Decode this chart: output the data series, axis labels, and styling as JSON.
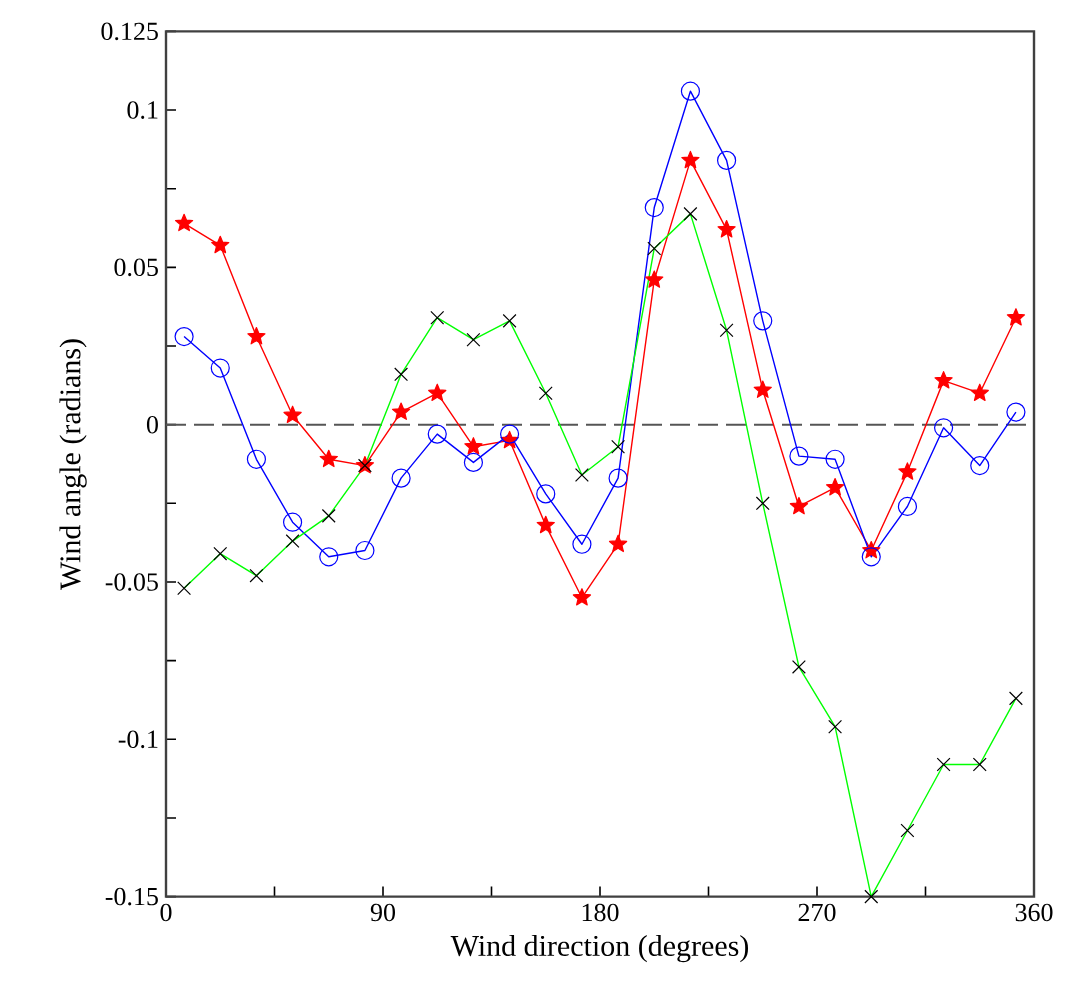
{
  "chart_data": {
    "type": "line",
    "xlabel": "Wind direction (degrees)",
    "ylabel": "Wind angle (radians)",
    "x": [
      7.5,
      22.5,
      37.5,
      52.5,
      67.5,
      82.5,
      97.5,
      112.5,
      127.5,
      142.5,
      157.5,
      172.5,
      187.5,
      202.5,
      217.5,
      232.5,
      247.5,
      262.5,
      277.5,
      292.5,
      307.5,
      322.5,
      337.5,
      352.5
    ],
    "series": [
      {
        "color": "#ff0000",
        "marker": "star",
        "values": [
          0.064,
          0.057,
          0.028,
          0.003,
          -0.011,
          -0.013,
          0.004,
          0.01,
          -0.007,
          -0.005,
          -0.032,
          -0.055,
          -0.038,
          0.046,
          0.084,
          0.062,
          0.011,
          -0.026,
          -0.02,
          -0.04,
          -0.015,
          0.014,
          0.01,
          0.034
        ]
      },
      {
        "color": "#0000ff",
        "marker": "circle",
        "values": [
          0.028,
          0.018,
          -0.011,
          -0.031,
          -0.042,
          -0.04,
          -0.017,
          -0.003,
          -0.012,
          -0.003,
          -0.022,
          -0.038,
          -0.017,
          0.069,
          0.106,
          0.084,
          0.033,
          -0.01,
          -0.011,
          -0.042,
          -0.026,
          -0.001,
          -0.013,
          0.004
        ]
      },
      {
        "color": "#00ff00",
        "marker": "cross",
        "values": [
          -0.052,
          -0.041,
          -0.048,
          -0.037,
          -0.029,
          -0.013,
          0.016,
          0.034,
          0.027,
          0.033,
          0.01,
          -0.016,
          -0.007,
          0.056,
          0.067,
          0.03,
          -0.025,
          -0.077,
          -0.096,
          -0.15,
          -0.129,
          -0.108,
          -0.108,
          -0.087
        ]
      }
    ],
    "xlim": [
      0,
      360
    ],
    "xticks": [
      0,
      {
        "value": 45,
        "label": null
      },
      90,
      {
        "value": 135,
        "label": null
      },
      180,
      {
        "value": 225,
        "label": null
      },
      270,
      {
        "value": 315,
        "label": null
      },
      360
    ],
    "ylim": [
      -0.15,
      0.125
    ],
    "yticks": [
      -0.15,
      {
        "value": -0.125,
        "label": null
      },
      -0.1,
      {
        "value": -0.075,
        "label": null
      },
      -0.05,
      {
        "value": -0.025,
        "label": null
      },
      0,
      {
        "value": 0.025,
        "label": null
      },
      0.05,
      {
        "value": 0.075,
        "label": null
      },
      0.1,
      0.125
    ],
    "ref_lines": [
      {
        "axis": "y",
        "value": 0,
        "color": "#555555",
        "line_style": "dashed"
      }
    ],
    "grid": false,
    "line_style": "solid"
  }
}
